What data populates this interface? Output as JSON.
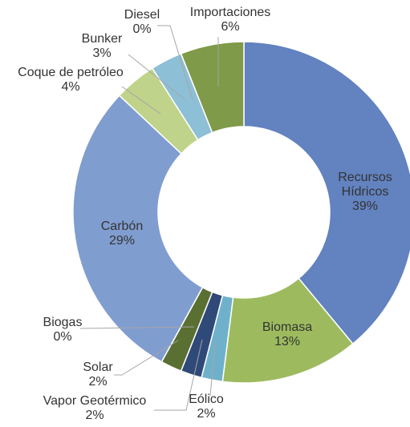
{
  "chart_data": {
    "type": "donut",
    "categories": [
      "Recursos Hídricos",
      "Biomasa",
      "Eólico",
      "Vapor Geotérmico",
      "Solar",
      "Biogas",
      "Carbón",
      "Coque de petróleo",
      "Bunker",
      "Diesel",
      "Importaciones"
    ],
    "values": [
      39,
      13,
      2,
      2,
      2,
      0,
      29,
      4,
      3,
      0,
      6
    ],
    "value_labels": [
      "39%",
      "13%",
      "2%",
      "2%",
      "2%",
      "0%",
      "29%",
      "4%",
      "3%",
      "0%",
      "6%"
    ],
    "colors": [
      "#6282c0",
      "#9dbb5e",
      "#6fb1cb",
      "#2f4a78",
      "#5a6f32",
      "#3f8aa8",
      "#809dd0",
      "#bfd38a",
      "#8dbfd6",
      "#3d5b8c",
      "#7f9a48"
    ]
  }
}
